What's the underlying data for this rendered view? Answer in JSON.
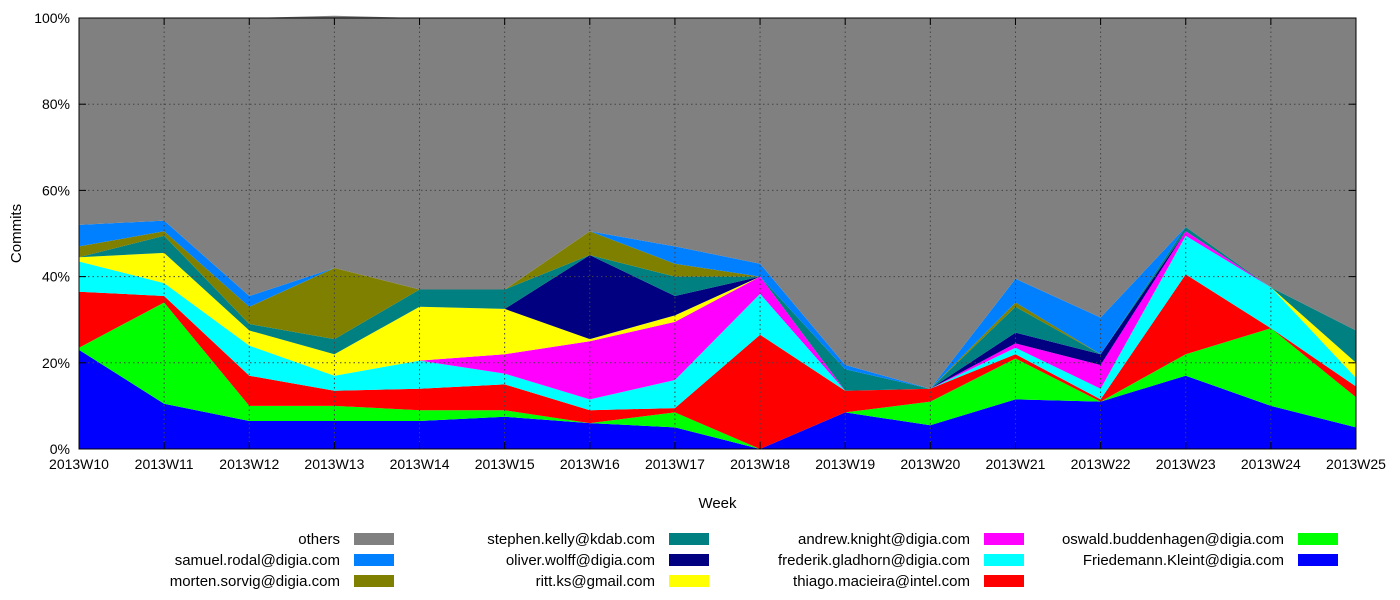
{
  "chart_data": {
    "type": "area",
    "stacked": true,
    "xlabel": "Week",
    "ylabel": "Commits",
    "ylim": [
      0,
      100
    ],
    "yticks": [
      "0%",
      "20%",
      "40%",
      "60%",
      "80%",
      "100%"
    ],
    "grid": true,
    "legend_position": "bottom",
    "categories": [
      "2013W10",
      "2013W11",
      "2013W12",
      "2013W13",
      "2013W14",
      "2013W15",
      "2013W16",
      "2013W17",
      "2013W18",
      "2013W19",
      "2013W20",
      "2013W21",
      "2013W22",
      "2013W23",
      "2013W24",
      "2013W25"
    ],
    "series": [
      {
        "name": "Friedemann.Kleint@digia.com",
        "color": "#0000ff",
        "values": [
          23,
          10.5,
          6.5,
          6.5,
          6.5,
          7.5,
          6,
          5,
          0,
          8.5,
          5.5,
          11.5,
          11,
          17,
          10,
          5
        ]
      },
      {
        "name": "oswald.buddenhagen@digia.com",
        "color": "#00ff00",
        "values": [
          0.5,
          23.5,
          3.5,
          3.5,
          2.5,
          1.5,
          0,
          3.5,
          0,
          0,
          5.5,
          9.5,
          0,
          5,
          18,
          7
        ]
      },
      {
        "name": "thiago.macieira@intel.com",
        "color": "#ff0000",
        "values": [
          13,
          1.5,
          7,
          3.5,
          5,
          6,
          3,
          1,
          26.5,
          5,
          3,
          1,
          0.5,
          18.5,
          0,
          2.5
        ]
      },
      {
        "name": "frederik.gladhorn@digia.com",
        "color": "#00ffff",
        "values": [
          7,
          3,
          7,
          3.5,
          6.5,
          2.5,
          2.5,
          6.5,
          9.5,
          0,
          0,
          1.5,
          2.5,
          9,
          9.5,
          2
        ]
      },
      {
        "name": "andrew.knight@digia.com",
        "color": "#ff00ff",
        "values": [
          0,
          0,
          0,
          0,
          0,
          4.5,
          13.5,
          13.5,
          4,
          0,
          0,
          1,
          5.5,
          1,
          0,
          0
        ]
      },
      {
        "name": "ritt.ks@gmail.com",
        "color": "#ffff00",
        "values": [
          1,
          7,
          3.5,
          5,
          12.5,
          10.5,
          0.5,
          1.5,
          0,
          0,
          0,
          0,
          0,
          0,
          0,
          3.5
        ]
      },
      {
        "name": "oliver.wolff@digia.com",
        "color": "#000080",
        "values": [
          0,
          0,
          0,
          0,
          0,
          0,
          19.5,
          4.5,
          0,
          0,
          0,
          2.5,
          2.5,
          0,
          0,
          0
        ]
      },
      {
        "name": "stephen.kelly@kdab.com",
        "color": "#008080",
        "values": [
          0,
          4,
          1.5,
          3.5,
          4,
          4.5,
          0,
          4.5,
          0,
          5,
          0,
          6,
          0,
          1,
          0,
          7.5
        ]
      },
      {
        "name": "morten.sorvig@digia.com",
        "color": "#808000",
        "values": [
          2.5,
          1,
          4,
          16.5,
          0,
          0,
          5.5,
          3,
          0,
          0,
          0,
          1,
          0,
          0,
          0,
          0
        ]
      },
      {
        "name": "samuel.rodal@digia.com",
        "color": "#0080ff",
        "values": [
          5,
          2.5,
          2.5,
          0,
          0,
          0,
          0,
          4,
          3,
          1,
          0,
          5.5,
          8.5,
          0,
          0,
          0
        ]
      },
      {
        "name": "others",
        "color": "#808080",
        "values": [
          48,
          47,
          64.5,
          58.5,
          63,
          63,
          49.5,
          53,
          57,
          80.5,
          86,
          60.5,
          69.5,
          48.5,
          62.5,
          72.5
        ]
      }
    ],
    "legend_order": [
      "others",
      "samuel.rodal@digia.com",
      "morten.sorvig@digia.com",
      "stephen.kelly@kdab.com",
      "oliver.wolff@digia.com",
      "ritt.ks@gmail.com",
      "andrew.knight@digia.com",
      "frederik.gladhorn@digia.com",
      "thiago.macieira@intel.com",
      "oswald.buddenhagen@digia.com",
      "Friedemann.Kleint@digia.com"
    ]
  }
}
